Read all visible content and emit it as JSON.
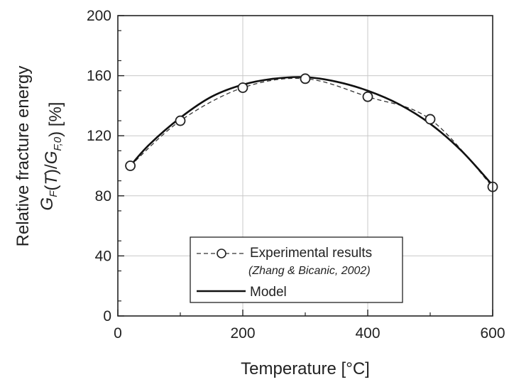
{
  "chart_data": {
    "type": "line",
    "xlabel": "Temperature [°C]",
    "ylabel": {
      "line1": "Relative fracture energy",
      "line2": "G_F(T)/G_F,0) [%]"
    },
    "xlim": [
      0,
      600
    ],
    "ylim": [
      0,
      200
    ],
    "xticks": [
      0,
      200,
      400,
      600
    ],
    "yticks": [
      0,
      40,
      80,
      120,
      160,
      200
    ],
    "grid": true,
    "legend_position": "bottom-center",
    "series": [
      {
        "name": "Experimental results",
        "citation": "(Zhang & Bicanic, 2002)",
        "style": "dashed-circle",
        "x": [
          20,
          100,
          200,
          300,
          400,
          500,
          600
        ],
        "y": [
          100,
          130,
          152,
          158,
          146,
          131,
          86
        ]
      },
      {
        "name": "Model",
        "style": "solid",
        "x": [
          20,
          50,
          100,
          150,
          200,
          250,
          300,
          350,
          400,
          450,
          500,
          550,
          600
        ],
        "y": [
          100,
          114,
          132,
          146,
          154,
          158,
          159,
          156,
          150,
          141,
          128,
          110,
          87
        ]
      }
    ]
  }
}
